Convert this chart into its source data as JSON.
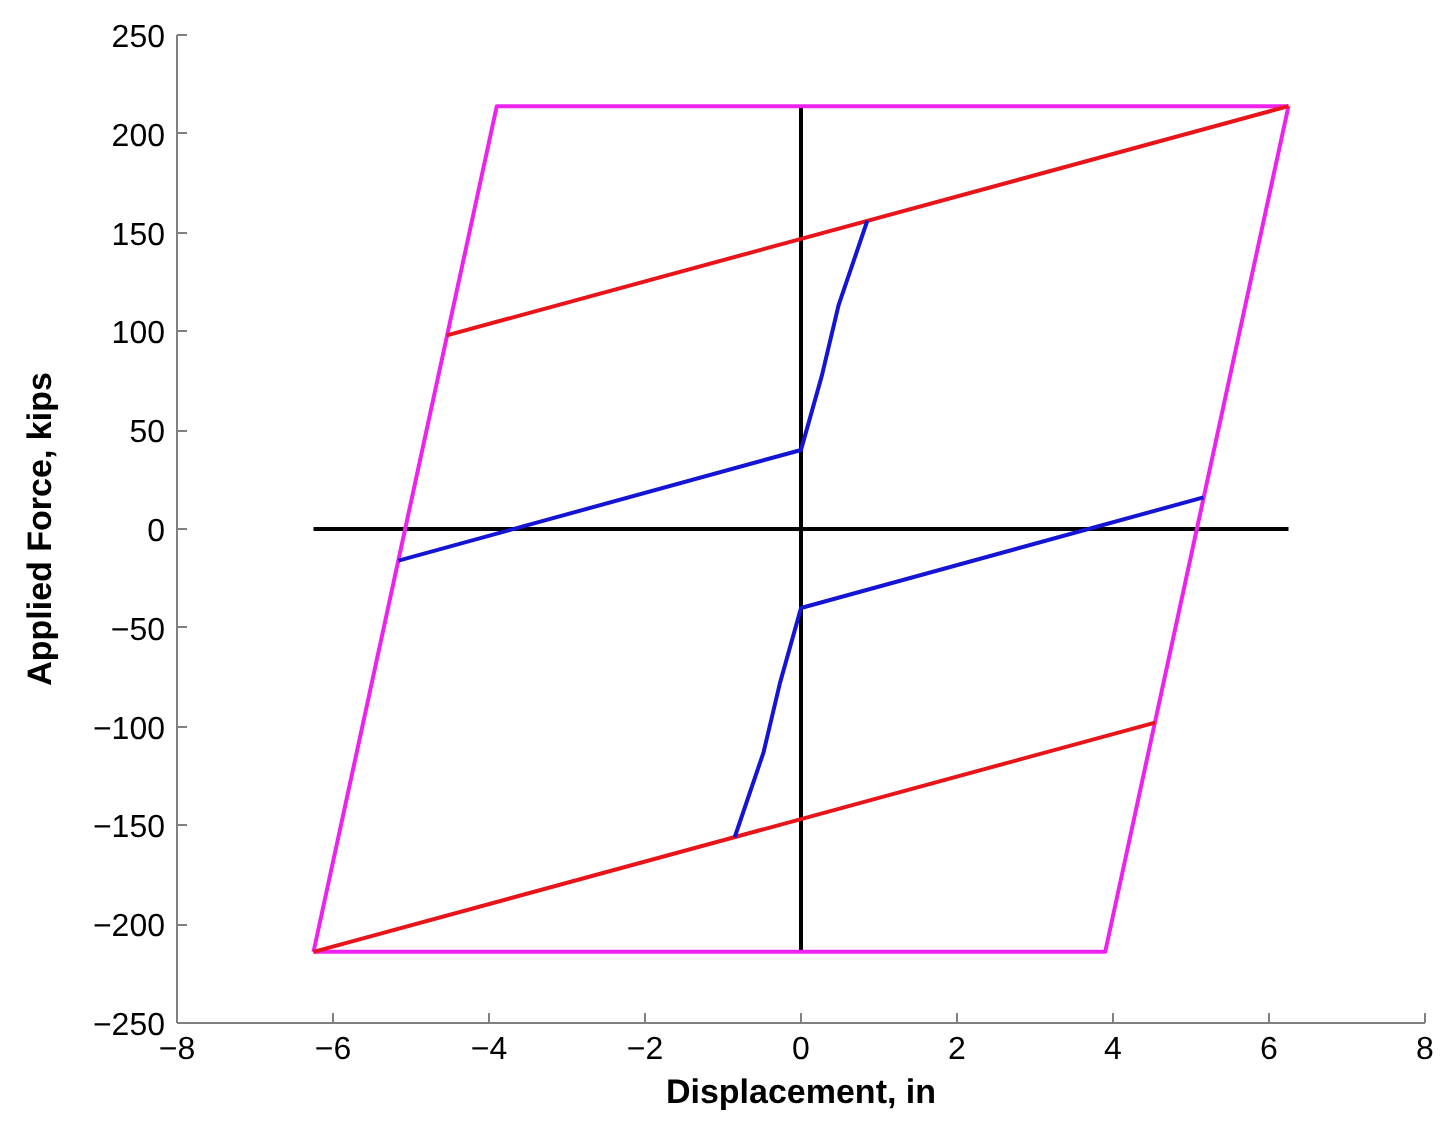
{
  "chart_data": {
    "type": "line",
    "xlabel": "Displacement, in",
    "ylabel": "Applied Force, kips",
    "xlim": [
      -8,
      8
    ],
    "ylim": [
      -250,
      250
    ],
    "xticks": [
      -8,
      -6,
      -4,
      -2,
      0,
      2,
      4,
      6,
      8
    ],
    "yticks": [
      -250,
      -200,
      -150,
      -100,
      -50,
      0,
      50,
      100,
      150,
      200,
      250
    ],
    "series": [
      {
        "color": "#000000",
        "x": [
          -6.25,
          6.25
        ],
        "values": [
          0,
          0
        ]
      },
      {
        "color": "#000000",
        "x": [
          0,
          0
        ],
        "values": [
          -214,
          214
        ]
      },
      {
        "color": "#ee22ee",
        "x": [
          -6.25,
          -3.9,
          6.25
        ],
        "values": [
          -214,
          214,
          214
        ]
      },
      {
        "color": "#ee22ee",
        "x": [
          -6.25,
          3.9,
          6.25
        ],
        "values": [
          -214,
          -214,
          214
        ]
      },
      {
        "color": "#e8141a",
        "x": [
          -4.54,
          6.25
        ],
        "values": [
          98,
          214
        ]
      },
      {
        "color": "#e8141a",
        "x": [
          -6.25,
          4.54
        ],
        "values": [
          -214,
          -98
        ]
      },
      {
        "color": "#1414d4",
        "x": [
          -5.16,
          0,
          0.27,
          0.48,
          0.85
        ],
        "values": [
          -16,
          40,
          78,
          113,
          156
        ]
      },
      {
        "color": "#1414d4",
        "x": [
          -0.85,
          -0.48,
          -0.27,
          0,
          5.16
        ],
        "values": [
          -156,
          -113,
          -78,
          -40,
          16
        ]
      }
    ]
  }
}
